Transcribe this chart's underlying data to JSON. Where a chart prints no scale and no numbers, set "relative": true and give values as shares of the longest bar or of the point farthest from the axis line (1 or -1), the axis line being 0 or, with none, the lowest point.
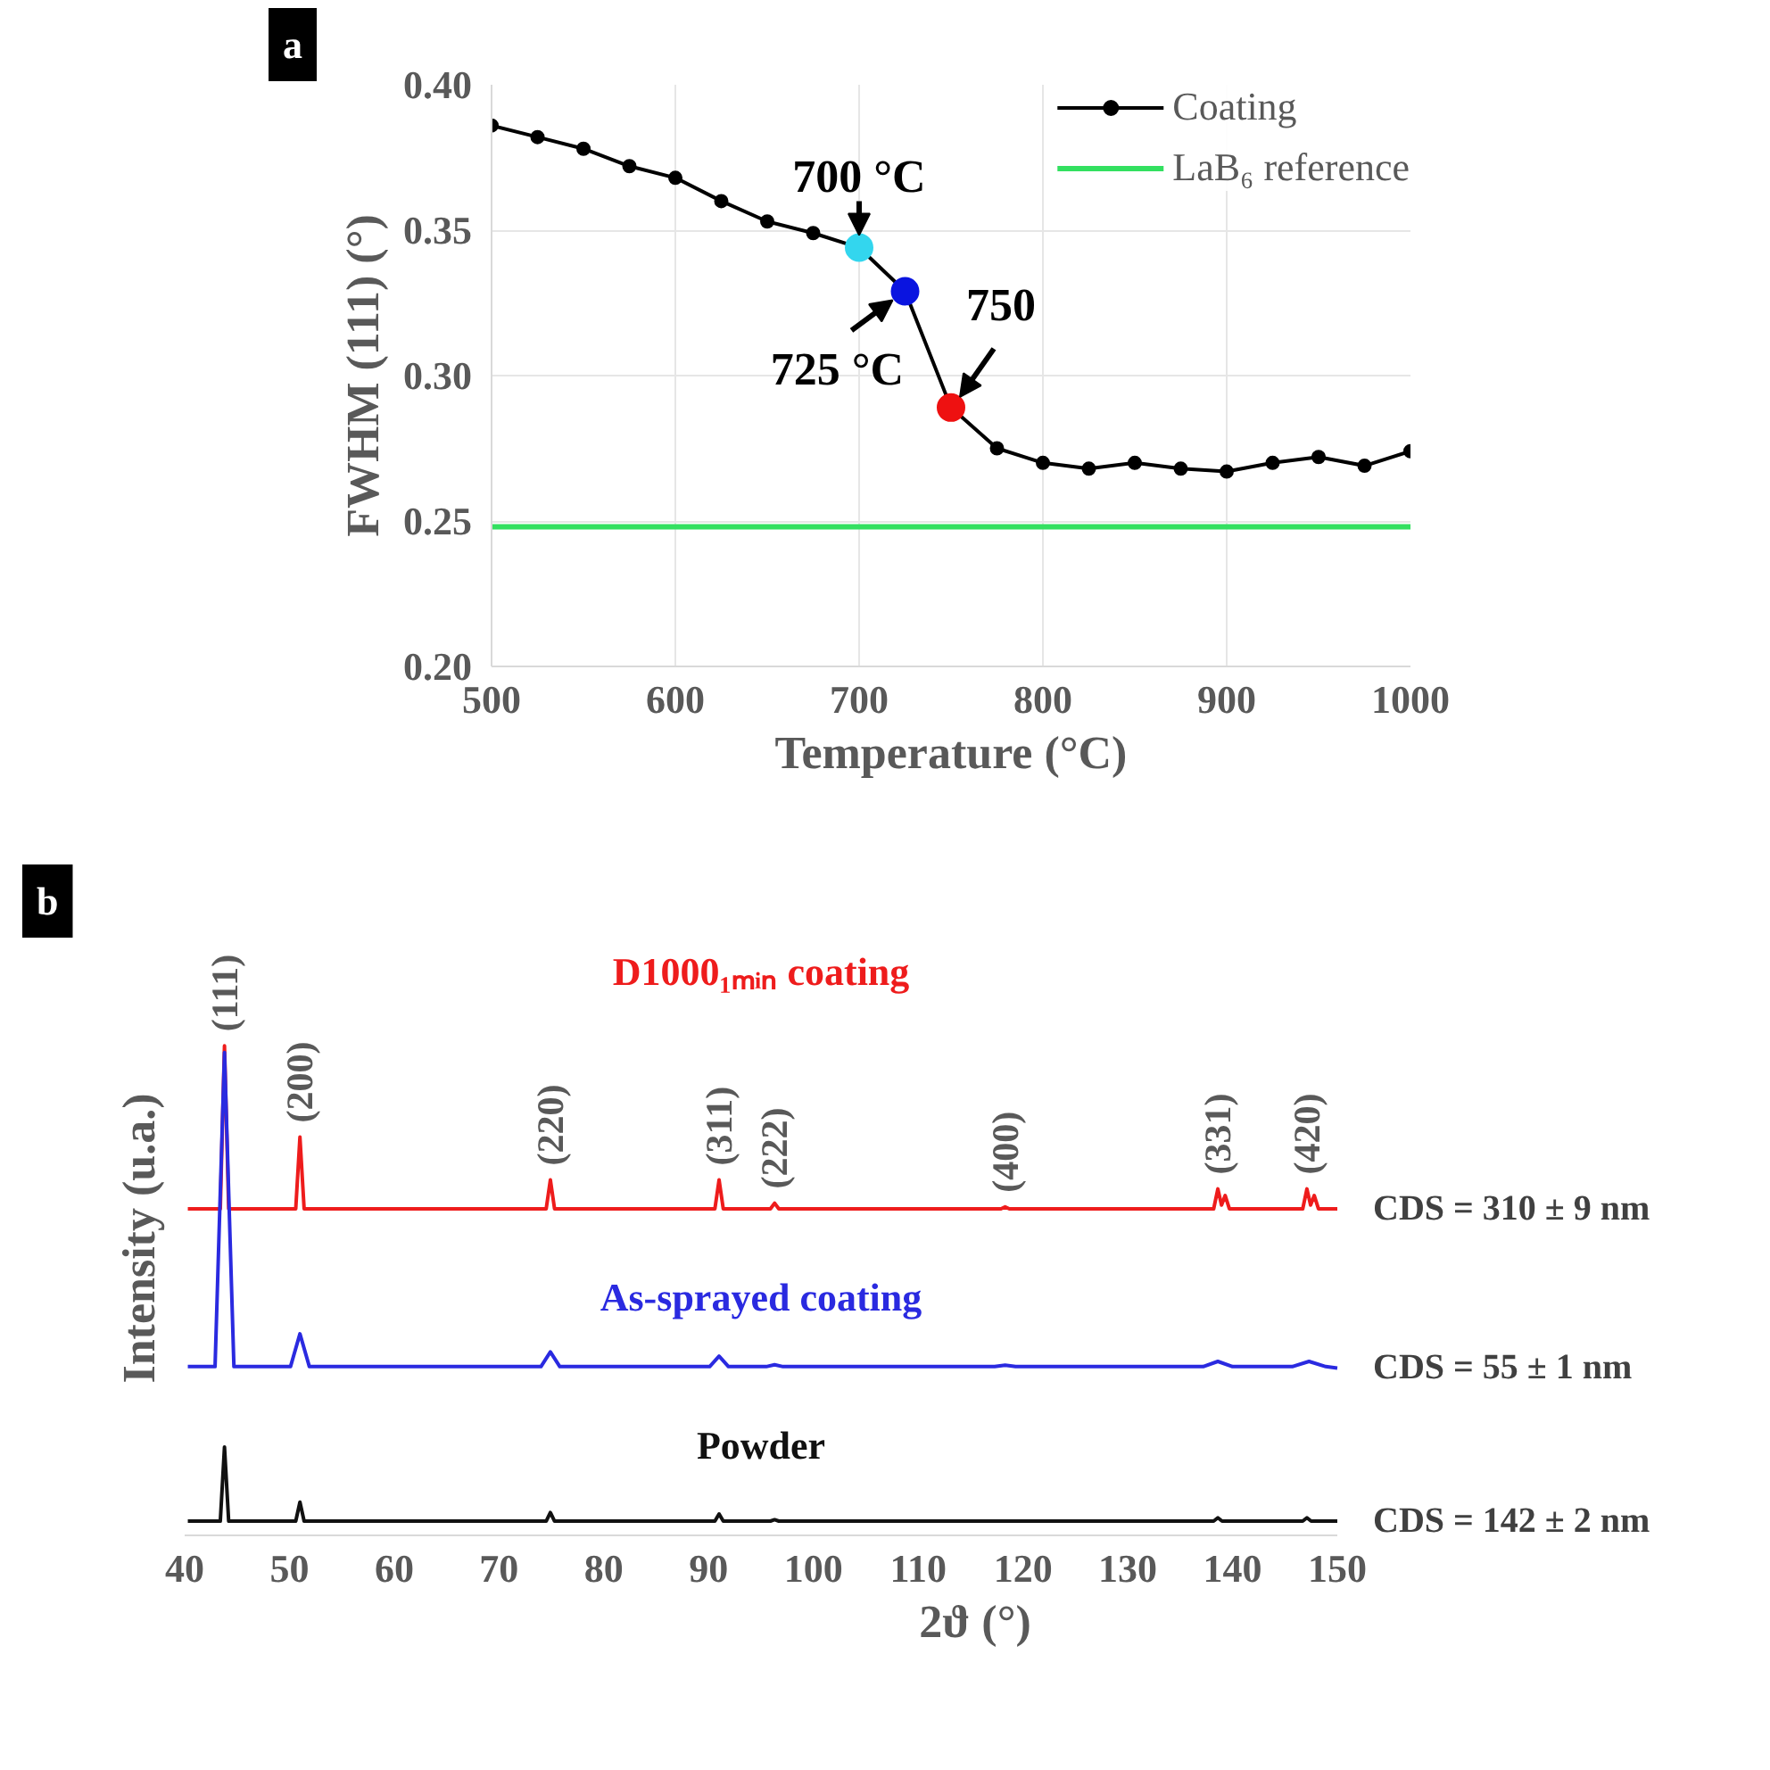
{
  "chart_data": [
    {
      "type": "line",
      "title": "a",
      "xlabel": "Temperature (°C)",
      "ylabel": "FWHM (111) (°)",
      "xlim": [
        500,
        1000
      ],
      "xticks": [
        500,
        600,
        700,
        800,
        900,
        1000
      ],
      "ylim": [
        0.2,
        0.4
      ],
      "yticks": [
        {
          "value": 0.2,
          "label": "0.20"
        },
        {
          "value": 0.25,
          "label": "0.25"
        },
        {
          "value": 0.3,
          "label": "0.30"
        },
        {
          "value": 0.35,
          "label": "0.35"
        },
        {
          "value": 0.4,
          "label": "0.40"
        }
      ],
      "grid": true,
      "legend": "top right",
      "series": [
        {
          "name": "Coating",
          "color": "#000000",
          "marker": "circle",
          "x": [
            500,
            525,
            550,
            575,
            600,
            625,
            650,
            675,
            700,
            725,
            750,
            775,
            800,
            825,
            850,
            875,
            900,
            925,
            950,
            975,
            1000
          ],
          "values": [
            0.386,
            0.382,
            0.378,
            0.372,
            0.368,
            0.36,
            0.353,
            0.349,
            0.344,
            0.329,
            0.289,
            0.275,
            0.27,
            0.268,
            0.27,
            0.268,
            0.267,
            0.27,
            0.272,
            0.269,
            0.274
          ],
          "colors": [
            "#000000",
            "#000000",
            "#000000",
            "#000000",
            "#000000",
            "#000000",
            "#000000",
            "#000000",
            "#33d6ee",
            "#0a14e0",
            "#ee1111",
            "#000000",
            "#000000",
            "#000000",
            "#000000",
            "#000000",
            "#000000",
            "#000000",
            "#000000",
            "#000000",
            "#000000"
          ]
        },
        {
          "name": "LaB₆ reference",
          "color": "#33e060",
          "marker": "none",
          "x": [
            500,
            1000
          ],
          "values": [
            0.248,
            0.248
          ]
        }
      ],
      "annotations": [
        {
          "text": "700 °C",
          "x": 700,
          "y": 0.344
        },
        {
          "text": "725 °C",
          "x": 725,
          "y": 0.329
        },
        {
          "text": "750",
          "x": 750,
          "y": 0.289
        }
      ]
    },
    {
      "type": "line",
      "relative": true,
      "title": "b",
      "xlabel": "2ϑ (°)",
      "ylabel": "Intensity (u.a.)",
      "xlim": [
        40,
        150
      ],
      "xticks": [
        40,
        50,
        60,
        70,
        80,
        90,
        100,
        110,
        120,
        130,
        140,
        150
      ],
      "tick_labels": "x",
      "grid": false,
      "series": [
        {
          "name": "D1000₁ₘᵢₙ coating",
          "color": "#ee1c1c",
          "x": [
            40.3,
            43.4,
            43.8,
            44.2,
            50.6,
            51.0,
            51.4,
            74.5,
            74.9,
            75.3,
            90.6,
            91.0,
            91.4,
            95.9,
            96.3,
            96.7,
            117.9,
            118.3,
            118.7,
            138.2,
            138.6,
            138.95,
            139.3,
            139.7,
            146.7,
            147.1,
            147.45,
            147.8,
            148.2,
            150
          ],
          "values": [
            0.657,
            0.657,
            1.0,
            0.657,
            0.657,
            0.808,
            0.657,
            0.657,
            0.718,
            0.657,
            0.657,
            0.718,
            0.657,
            0.657,
            0.669,
            0.657,
            0.657,
            0.661,
            0.657,
            0.657,
            0.699,
            0.665,
            0.685,
            0.657,
            0.657,
            0.699,
            0.665,
            0.685,
            0.657,
            0.657
          ]
        },
        {
          "name": "As-sprayed coating",
          "color": "#2a2ae0",
          "x": [
            40.3,
            42.9,
            43.8,
            44.7,
            50.1,
            51.0,
            51.9,
            74.0,
            74.9,
            75.8,
            90.1,
            91.0,
            91.9,
            95.5,
            96.3,
            97.1,
            117.3,
            118.3,
            119.3,
            137.2,
            138.6,
            140.0,
            145.7,
            147.3,
            148.9,
            150
          ],
          "values": [
            0.325,
            0.325,
            0.986,
            0.325,
            0.325,
            0.394,
            0.325,
            0.325,
            0.356,
            0.325,
            0.325,
            0.347,
            0.325,
            0.325,
            0.329,
            0.325,
            0.325,
            0.328,
            0.325,
            0.325,
            0.336,
            0.325,
            0.325,
            0.336,
            0.325,
            0.322
          ]
        },
        {
          "name": "Powder",
          "color": "#111111",
          "x": [
            40.3,
            43.4,
            43.8,
            44.2,
            50.6,
            51.0,
            51.4,
            74.5,
            74.9,
            75.3,
            90.6,
            91.0,
            91.4,
            95.9,
            96.3,
            96.7,
            138.2,
            138.6,
            139.0,
            146.7,
            147.1,
            147.5,
            150
          ],
          "values": [
            0.0,
            0.0,
            0.156,
            0.0,
            0.0,
            0.04,
            0.0,
            0.0,
            0.018,
            0.0,
            0.0,
            0.015,
            0.0,
            0.0,
            0.003,
            0.0,
            0.0,
            0.007,
            0.0,
            0.0,
            0.007,
            0.0,
            0.0
          ]
        }
      ],
      "annotations": [
        "CDS = 310 ± 9 nm",
        "CDS = 55 ± 1 nm",
        "CDS = 142 ± 2 nm",
        {
          "text": "(111)",
          "x": 43.8,
          "y": 1.0
        },
        {
          "text": "(200)",
          "x": 51.0,
          "y": 0.808
        },
        {
          "text": "(220)",
          "x": 74.9,
          "y": 0.718
        },
        {
          "text": "(311)",
          "x": 91.0,
          "y": 0.718
        },
        {
          "text": "(222)",
          "x": 96.3,
          "y": 0.669
        },
        {
          "text": "(400)",
          "x": 118.3,
          "y": 0.661
        },
        {
          "text": "(331)",
          "x": 138.6,
          "y": 0.699
        },
        {
          "text": "(420)",
          "x": 147.1,
          "y": 0.699
        }
      ]
    }
  ]
}
